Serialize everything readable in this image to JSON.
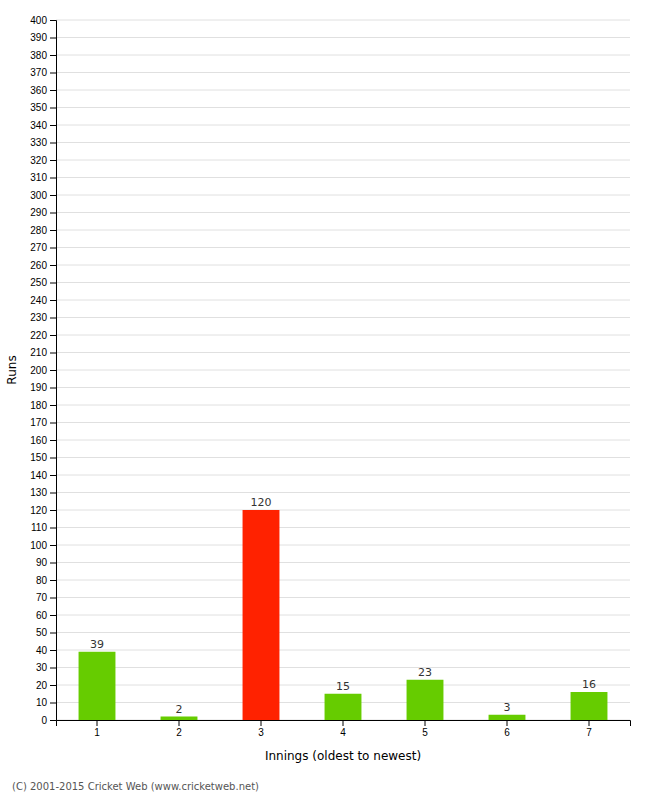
{
  "chart_data": {
    "type": "bar",
    "categories": [
      "1",
      "2",
      "3",
      "4",
      "5",
      "6",
      "7"
    ],
    "values": [
      39,
      2,
      120,
      15,
      23,
      3,
      16
    ],
    "colors": [
      "#66cc00",
      "#66cc00",
      "#ff2200",
      "#66cc00",
      "#66cc00",
      "#66cc00",
      "#66cc00"
    ],
    "xlabel": "Innings (oldest to newest)",
    "ylabel": "Runs",
    "ylim": [
      0,
      400
    ],
    "yticks": [
      0,
      10,
      20,
      30,
      40,
      50,
      60,
      70,
      80,
      90,
      100,
      110,
      120,
      130,
      140,
      150,
      160,
      170,
      180,
      190,
      200,
      210,
      220,
      230,
      240,
      250,
      260,
      270,
      280,
      290,
      300,
      310,
      320,
      330,
      340,
      350,
      360,
      370,
      380,
      390,
      400
    ],
    "grid": true,
    "data_labels": true,
    "annotations": [
      "(C) 2001-2015 Cricket Web (www.cricketweb.net)"
    ]
  }
}
